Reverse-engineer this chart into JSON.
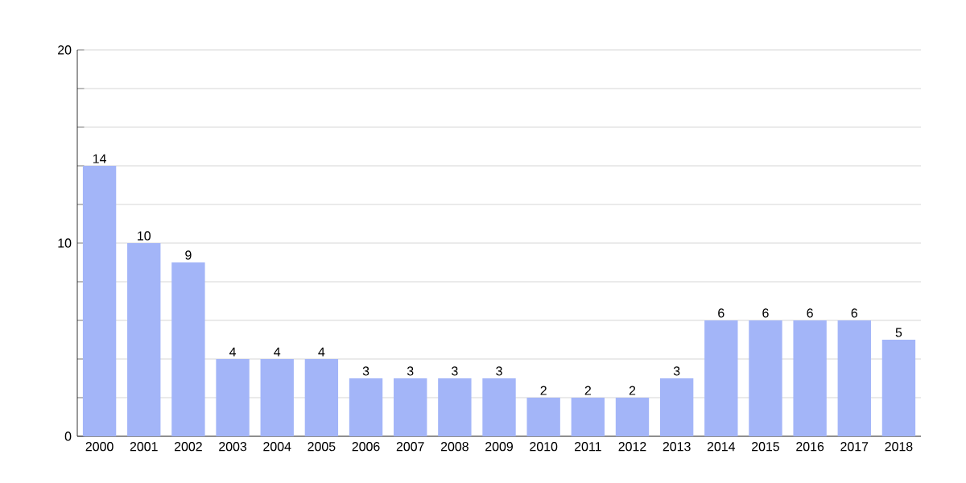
{
  "chart_data": {
    "type": "bar",
    "categories": [
      "2000",
      "2001",
      "2002",
      "2003",
      "2004",
      "2005",
      "2006",
      "2007",
      "2008",
      "2009",
      "2010",
      "2011",
      "2012",
      "2013",
      "2014",
      "2015",
      "2016",
      "2017",
      "2018"
    ],
    "values": [
      14,
      10,
      9,
      4,
      4,
      4,
      3,
      3,
      3,
      3,
      2,
      2,
      2,
      3,
      6,
      6,
      6,
      6,
      5
    ],
    "color": "#a3b5f8",
    "ylim": [
      0,
      20
    ],
    "yticks": [
      0,
      {
        "value": 2,
        "label": null
      },
      {
        "value": 4,
        "label": null
      },
      {
        "value": 6,
        "label": null
      },
      {
        "value": 8,
        "label": null
      },
      10,
      {
        "value": 12,
        "label": null
      },
      {
        "value": 14,
        "label": null
      },
      {
        "value": 16,
        "label": null
      },
      {
        "value": 18,
        "label": null
      },
      20
    ],
    "grid": "y",
    "data_labels": true
  }
}
